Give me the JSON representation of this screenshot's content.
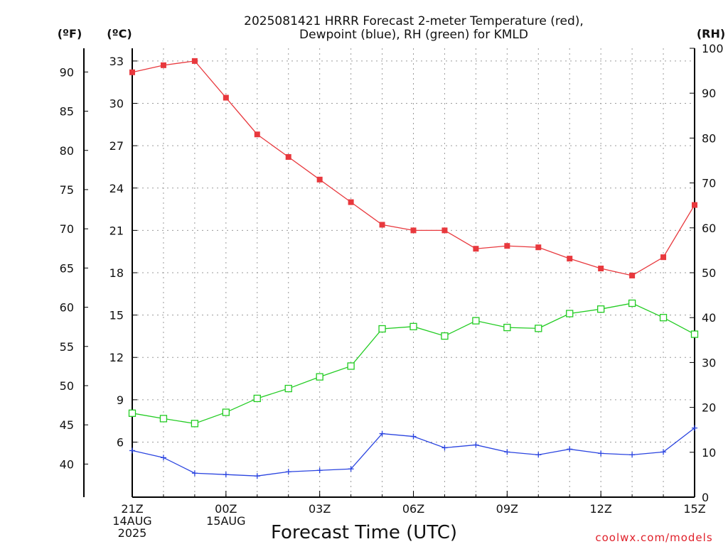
{
  "chart_data": {
    "type": "line",
    "title": "2025081421 HRRR Forecast 2-meter Temperature (red),",
    "subtitle": "Dewpoint (blue), RH (green) for KMLD",
    "xlabel": "Forecast Time (UTC)",
    "credit": "coolwx.com/models",
    "units": {
      "fahrenheit": "(ºF)",
      "celsius": "(ºC)",
      "rh": "(RH)"
    },
    "x": [
      0,
      1,
      2,
      3,
      4,
      5,
      6,
      7,
      8,
      9,
      10,
      11,
      12,
      13,
      14,
      15,
      16,
      17,
      18
    ],
    "x_ticks": [
      {
        "hour": 0,
        "lines": [
          "21Z",
          "14AUG",
          "2025"
        ]
      },
      {
        "hour": 3,
        "lines": [
          "00Z",
          "15AUG"
        ]
      },
      {
        "hour": 6,
        "lines": [
          "03Z"
        ]
      },
      {
        "hour": 9,
        "lines": [
          "06Z"
        ]
      },
      {
        "hour": 12,
        "lines": [
          "09Z"
        ]
      },
      {
        "hour": 15,
        "lines": [
          "12Z"
        ]
      },
      {
        "hour": 18,
        "lines": [
          "15Z"
        ]
      }
    ],
    "celsius_axis": {
      "min": 2.1,
      "max": 33.9,
      "ticks": [
        "6",
        "9",
        "12",
        "15",
        "18",
        "21",
        "24",
        "27",
        "30",
        "33"
      ]
    },
    "fahrenheit_axis": {
      "ticks": [
        "40",
        "45",
        "50",
        "55",
        "60",
        "65",
        "70",
        "75",
        "80",
        "85",
        "90"
      ]
    },
    "rh_axis": {
      "min": 0,
      "max": 100,
      "ticks": [
        "0",
        "10",
        "20",
        "30",
        "40",
        "50",
        "60",
        "70",
        "80",
        "90",
        "100"
      ]
    },
    "series": [
      {
        "name": "2-meter Temperature",
        "axis": "celsius",
        "color": "#e8383d",
        "marker": "filled-square",
        "values": [
          32.2,
          32.7,
          33.0,
          30.4,
          27.8,
          26.2,
          24.6,
          23.0,
          21.4,
          21.0,
          21.0,
          19.7,
          19.9,
          19.8,
          19.0,
          18.3,
          17.8,
          19.1,
          22.8
        ]
      },
      {
        "name": "Dewpoint",
        "axis": "celsius",
        "color": "#2a44e0",
        "marker": "plus",
        "values": [
          5.4,
          4.9,
          3.8,
          3.7,
          3.6,
          3.9,
          4.0,
          4.1,
          6.6,
          6.4,
          5.6,
          5.8,
          5.3,
          5.1,
          5.5,
          5.2,
          5.1,
          5.3,
          7.0
        ]
      },
      {
        "name": "RH",
        "axis": "rh",
        "color": "#22cc22",
        "marker": "open-square",
        "values": [
          18.7,
          17.5,
          16.4,
          18.9,
          22.0,
          24.2,
          26.8,
          29.2,
          37.5,
          38.0,
          35.9,
          39.3,
          37.8,
          37.6,
          40.9,
          41.9,
          43.2,
          40.0,
          36.3
        ]
      }
    ],
    "grid": true
  }
}
